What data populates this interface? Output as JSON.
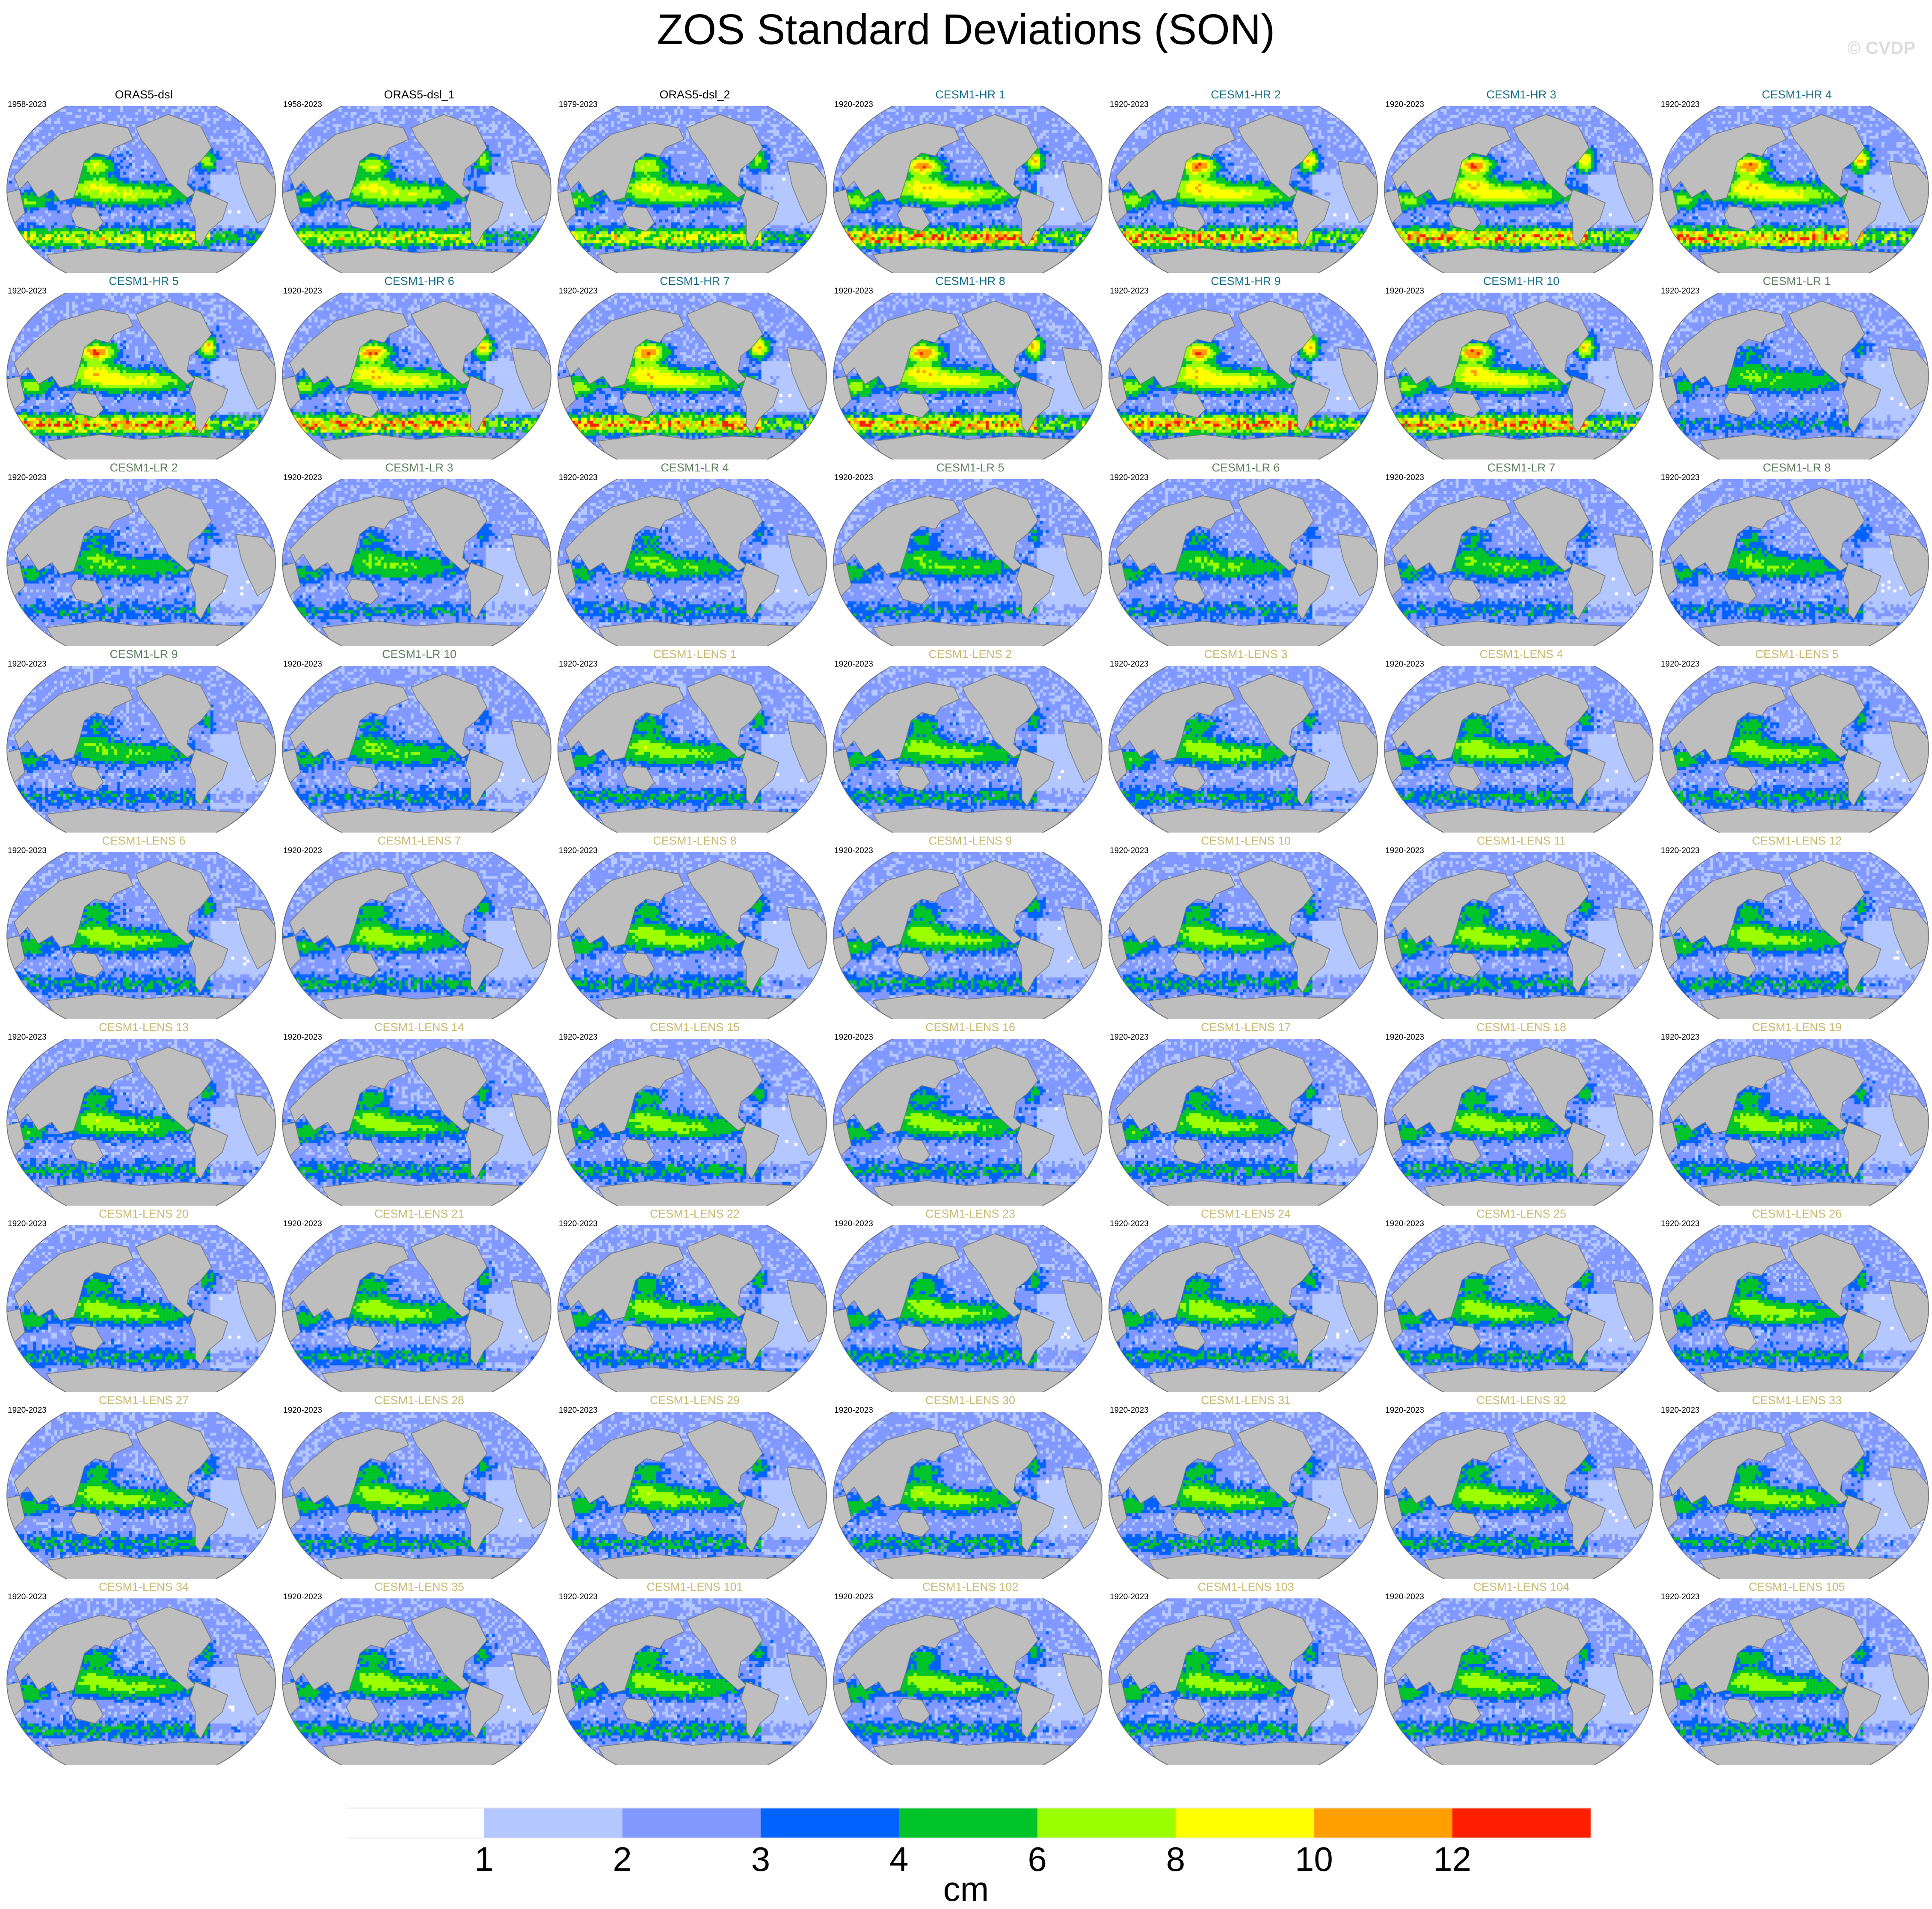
{
  "title": "ZOS Standard Deviations (SON)",
  "watermark": "© CVDP",
  "group_colors": {
    "ORAS5": "#000000",
    "HR": "#1a6e8a",
    "LR": "#5e8060",
    "LENS": "#c8b870"
  },
  "panels": [
    {
      "label": "ORAS5-dsl",
      "years": "1958-2023",
      "group": "ORAS5"
    },
    {
      "label": "ORAS5-dsl_1",
      "years": "1958-2023",
      "group": "ORAS5"
    },
    {
      "label": "ORAS5-dsl_2",
      "years": "1979-2023",
      "group": "ORAS5"
    },
    {
      "label": "CESM1-HR 1",
      "years": "1920-2023",
      "group": "HR"
    },
    {
      "label": "CESM1-HR 2",
      "years": "1920-2023",
      "group": "HR"
    },
    {
      "label": "CESM1-HR 3",
      "years": "1920-2023",
      "group": "HR"
    },
    {
      "label": "CESM1-HR 4",
      "years": "1920-2023",
      "group": "HR"
    },
    {
      "label": "CESM1-HR 5",
      "years": "1920-2023",
      "group": "HR"
    },
    {
      "label": "CESM1-HR 6",
      "years": "1920-2023",
      "group": "HR"
    },
    {
      "label": "CESM1-HR 7",
      "years": "1920-2023",
      "group": "HR"
    },
    {
      "label": "CESM1-HR 8",
      "years": "1920-2023",
      "group": "HR"
    },
    {
      "label": "CESM1-HR 9",
      "years": "1920-2023",
      "group": "HR"
    },
    {
      "label": "CESM1-HR 10",
      "years": "1920-2023",
      "group": "HR"
    },
    {
      "label": "CESM1-LR 1",
      "years": "1920-2023",
      "group": "LR"
    },
    {
      "label": "CESM1-LR 2",
      "years": "1920-2023",
      "group": "LR"
    },
    {
      "label": "CESM1-LR 3",
      "years": "1920-2023",
      "group": "LR"
    },
    {
      "label": "CESM1-LR 4",
      "years": "1920-2023",
      "group": "LR"
    },
    {
      "label": "CESM1-LR 5",
      "years": "1920-2023",
      "group": "LR"
    },
    {
      "label": "CESM1-LR 6",
      "years": "1920-2023",
      "group": "LR"
    },
    {
      "label": "CESM1-LR 7",
      "years": "1920-2023",
      "group": "LR"
    },
    {
      "label": "CESM1-LR 8",
      "years": "1920-2023",
      "group": "LR"
    },
    {
      "label": "CESM1-LR 9",
      "years": "1920-2023",
      "group": "LR"
    },
    {
      "label": "CESM1-LR 10",
      "years": "1920-2023",
      "group": "LR"
    },
    {
      "label": "CESM1-LENS 1",
      "years": "1920-2023",
      "group": "LENS"
    },
    {
      "label": "CESM1-LENS 2",
      "years": "1920-2023",
      "group": "LENS"
    },
    {
      "label": "CESM1-LENS 3",
      "years": "1920-2023",
      "group": "LENS"
    },
    {
      "label": "CESM1-LENS 4",
      "years": "1920-2023",
      "group": "LENS"
    },
    {
      "label": "CESM1-LENS 5",
      "years": "1920-2023",
      "group": "LENS"
    },
    {
      "label": "CESM1-LENS 6",
      "years": "1920-2023",
      "group": "LENS"
    },
    {
      "label": "CESM1-LENS 7",
      "years": "1920-2023",
      "group": "LENS"
    },
    {
      "label": "CESM1-LENS 8",
      "years": "1920-2023",
      "group": "LENS"
    },
    {
      "label": "CESM1-LENS 9",
      "years": "1920-2023",
      "group": "LENS"
    },
    {
      "label": "CESM1-LENS 10",
      "years": "1920-2023",
      "group": "LENS"
    },
    {
      "label": "CESM1-LENS 11",
      "years": "1920-2023",
      "group": "LENS"
    },
    {
      "label": "CESM1-LENS 12",
      "years": "1920-2023",
      "group": "LENS"
    },
    {
      "label": "CESM1-LENS 13",
      "years": "1920-2023",
      "group": "LENS"
    },
    {
      "label": "CESM1-LENS 14",
      "years": "1920-2023",
      "group": "LENS"
    },
    {
      "label": "CESM1-LENS 15",
      "years": "1920-2023",
      "group": "LENS"
    },
    {
      "label": "CESM1-LENS 16",
      "years": "1920-2023",
      "group": "LENS"
    },
    {
      "label": "CESM1-LENS 17",
      "years": "1920-2023",
      "group": "LENS"
    },
    {
      "label": "CESM1-LENS 18",
      "years": "1920-2023",
      "group": "LENS"
    },
    {
      "label": "CESM1-LENS 19",
      "years": "1920-2023",
      "group": "LENS"
    },
    {
      "label": "CESM1-LENS 20",
      "years": "1920-2023",
      "group": "LENS"
    },
    {
      "label": "CESM1-LENS 21",
      "years": "1920-2023",
      "group": "LENS"
    },
    {
      "label": "CESM1-LENS 22",
      "years": "1920-2023",
      "group": "LENS"
    },
    {
      "label": "CESM1-LENS 23",
      "years": "1920-2023",
      "group": "LENS"
    },
    {
      "label": "CESM1-LENS 24",
      "years": "1920-2023",
      "group": "LENS"
    },
    {
      "label": "CESM1-LENS 25",
      "years": "1920-2023",
      "group": "LENS"
    },
    {
      "label": "CESM1-LENS 26",
      "years": "1920-2023",
      "group": "LENS"
    },
    {
      "label": "CESM1-LENS 27",
      "years": "1920-2023",
      "group": "LENS"
    },
    {
      "label": "CESM1-LENS 28",
      "years": "1920-2023",
      "group": "LENS"
    },
    {
      "label": "CESM1-LENS 29",
      "years": "1920-2023",
      "group": "LENS"
    },
    {
      "label": "CESM1-LENS 30",
      "years": "1920-2023",
      "group": "LENS"
    },
    {
      "label": "CESM1-LENS 31",
      "years": "1920-2023",
      "group": "LENS"
    },
    {
      "label": "CESM1-LENS 32",
      "years": "1920-2023",
      "group": "LENS"
    },
    {
      "label": "CESM1-LENS 33",
      "years": "1920-2023",
      "group": "LENS"
    },
    {
      "label": "CESM1-LENS 34",
      "years": "1920-2023",
      "group": "LENS"
    },
    {
      "label": "CESM1-LENS 35",
      "years": "1920-2023",
      "group": "LENS"
    },
    {
      "label": "CESM1-LENS 101",
      "years": "1920-2023",
      "group": "LENS"
    },
    {
      "label": "CESM1-LENS 102",
      "years": "1920-2023",
      "group": "LENS"
    },
    {
      "label": "CESM1-LENS 103",
      "years": "1920-2023",
      "group": "LENS"
    },
    {
      "label": "CESM1-LENS 104",
      "years": "1920-2023",
      "group": "LENS"
    },
    {
      "label": "CESM1-LENS 105",
      "years": "1920-2023",
      "group": "LENS"
    }
  ],
  "colorbar": {
    "levels": [
      "1",
      "2",
      "3",
      "4",
      "6",
      "8",
      "10",
      "12"
    ],
    "colors": [
      "#ffffff",
      "#b4c8ff",
      "#8098ff",
      "#0062ff",
      "#00c42a",
      "#9cff00",
      "#ffff00",
      "#ffa000",
      "#ff1e00"
    ],
    "units": "cm"
  },
  "land_color": "#bebebe"
}
